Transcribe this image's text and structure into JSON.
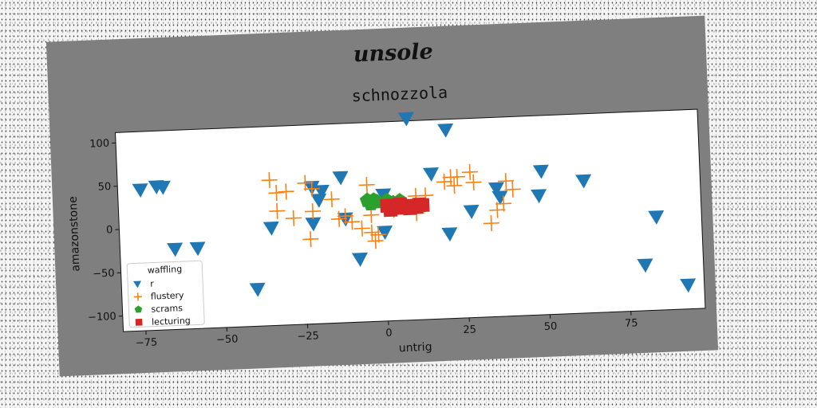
{
  "chart_data": {
    "type": "scatter",
    "suptitle": "unsole",
    "title": "schnozzola",
    "xlabel": "untrig",
    "ylabel": "amazonstone",
    "xlim": [
      -82,
      98
    ],
    "ylim": [
      -118,
      112
    ],
    "xticks": [
      -75,
      -50,
      -25,
      0,
      25,
      50,
      75
    ],
    "xtick_labels": [
      "−75",
      "−50",
      "−25",
      "0",
      "25",
      "50",
      "75"
    ],
    "yticks": [
      -100,
      -50,
      0,
      50,
      100
    ],
    "ytick_labels": [
      "−100",
      "−50",
      "0",
      "50",
      "100"
    ],
    "grid": false,
    "legend": {
      "title": "waffling",
      "position": "lower-left"
    },
    "series": [
      {
        "name": "r",
        "marker": "triangle-down",
        "color": "#1f77b4",
        "points": [
          [
            8,
            115
          ],
          [
            20,
            100
          ],
          [
            -75,
            45
          ],
          [
            -70,
            48
          ],
          [
            -68,
            47
          ],
          [
            -13,
            50
          ],
          [
            15,
            50
          ],
          [
            49,
            48
          ],
          [
            62,
            35
          ],
          [
            -22,
            40
          ],
          [
            -19,
            35
          ],
          [
            -20,
            25
          ],
          [
            0,
            28
          ],
          [
            35,
            30
          ],
          [
            36,
            20
          ],
          [
            48,
            20
          ],
          [
            -65,
            -25
          ],
          [
            -58,
            -25
          ],
          [
            -35,
            -5
          ],
          [
            -22,
            -2
          ],
          [
            -12,
            2
          ],
          [
            -40,
            -75
          ],
          [
            -8,
            -45
          ],
          [
            0,
            -15
          ],
          [
            27,
            5
          ],
          [
            20,
            -20
          ],
          [
            84,
            -10
          ],
          [
            80,
            -65
          ],
          [
            93,
            -90
          ]
        ]
      },
      {
        "name": "flustery",
        "marker": "plus",
        "color": "#ff7f0e",
        "points": [
          [
            -35,
            50
          ],
          [
            -33,
            35
          ],
          [
            -30,
            36
          ],
          [
            -24,
            45
          ],
          [
            -22,
            38
          ],
          [
            -16,
            25
          ],
          [
            -33,
            14
          ],
          [
            -28,
            5
          ],
          [
            -22,
            12
          ],
          [
            -14,
            2
          ],
          [
            -12,
            5
          ],
          [
            -10,
            -2
          ],
          [
            -7,
            -10
          ],
          [
            -5,
            40
          ],
          [
            -4,
            5
          ],
          [
            -4,
            -15
          ],
          [
            -3,
            -25
          ],
          [
            -2,
            -18
          ],
          [
            3,
            10
          ],
          [
            10,
            5
          ],
          [
            10,
            25
          ],
          [
            13,
            25
          ],
          [
            19,
            40
          ],
          [
            21,
            45
          ],
          [
            22,
            35
          ],
          [
            23,
            45
          ],
          [
            27,
            50
          ],
          [
            28,
            38
          ],
          [
            33,
            -10
          ],
          [
            35,
            5
          ],
          [
            37,
            12
          ],
          [
            38,
            38
          ],
          [
            40,
            28
          ],
          [
            -23,
            -20
          ]
        ]
      },
      {
        "name": "scrams",
        "marker": "pentagon",
        "color": "#2ca02c",
        "points": [
          [
            -5,
            22
          ],
          [
            -3,
            22
          ],
          [
            -2,
            20
          ],
          [
            1,
            21
          ],
          [
            3,
            18
          ],
          [
            5,
            20
          ],
          [
            -4,
            18
          ]
        ]
      },
      {
        "name": "lecturing",
        "marker": "square",
        "color": "#d62728",
        "points": [
          [
            1,
            15
          ],
          [
            3,
            15
          ],
          [
            5,
            16
          ],
          [
            7,
            14
          ],
          [
            9,
            13
          ],
          [
            11,
            15
          ],
          [
            2,
            10
          ],
          [
            4,
            12
          ],
          [
            6,
            12
          ],
          [
            8,
            11
          ],
          [
            10,
            12
          ],
          [
            12,
            14
          ]
        ]
      }
    ]
  }
}
